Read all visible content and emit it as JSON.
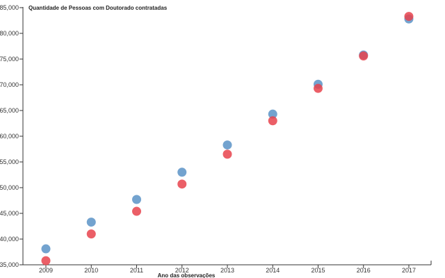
{
  "chart_data": {
    "type": "scatter",
    "title": "Quantidade de Pessoas com Doutorado contratadas",
    "xlabel": "Ano das observações",
    "ylabel": "",
    "x": [
      "2009",
      "2010",
      "2011",
      "2012",
      "2013",
      "2014",
      "2015",
      "2016",
      "2017"
    ],
    "ylim": [
      35000,
      85000
    ],
    "yticks": [
      35000,
      40000,
      45000,
      50000,
      55000,
      60000,
      65000,
      70000,
      75000,
      80000,
      85000
    ],
    "ytick_labels": [
      "35,000",
      "40,000",
      "45,000",
      "50,000",
      "55,000",
      "60,000",
      "65,000",
      "70,000",
      "75,000",
      "80,000",
      "85,000"
    ],
    "grid": false,
    "series": [
      {
        "name": "blue",
        "color": "#5b93c7",
        "values": [
          38100,
          43300,
          47700,
          53000,
          58300,
          64300,
          70100,
          75800,
          82800
        ]
      },
      {
        "name": "red",
        "color": "#e8434c",
        "values": [
          35800,
          41000,
          45400,
          50700,
          56500,
          63000,
          69300,
          75600,
          83300
        ]
      }
    ]
  }
}
